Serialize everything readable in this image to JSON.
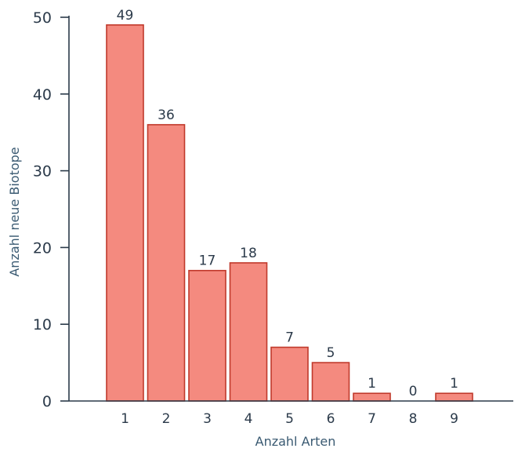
{
  "chart_data": {
    "type": "bar",
    "categories": [
      "1",
      "2",
      "3",
      "4",
      "5",
      "6",
      "7",
      "8",
      "9"
    ],
    "values": [
      49,
      36,
      17,
      18,
      7,
      5,
      1,
      0,
      1
    ],
    "data_labels": [
      "49",
      "36",
      "17",
      "18",
      "7",
      "5",
      "1",
      "0",
      "1"
    ],
    "title": "",
    "xlabel": "Anzahl Arten",
    "ylabel": "Anzahl neue Biotope",
    "ylim": [
      0,
      50
    ],
    "yticks": [
      0,
      10,
      20,
      30,
      40,
      50
    ],
    "grid": false,
    "legend": "none",
    "colors": {
      "bar_fill": "#f48a7f",
      "bar_stroke": "#c0392b",
      "axis": "#2b3a4a",
      "label_text": "#3a5a72"
    }
  }
}
